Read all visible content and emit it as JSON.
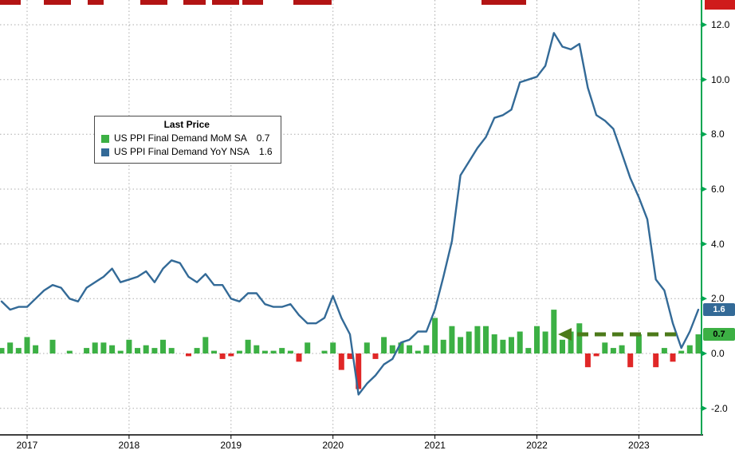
{
  "window": {
    "background": "#ffffff"
  },
  "colors": {
    "bar_positive": "#3cb044",
    "bar_negative": "#e02727",
    "line": "#336a97",
    "axis_green": "#00a651",
    "grid": "#ababab",
    "axis_text": "#000000",
    "annotation": "#4c7a1a"
  },
  "legend": {
    "title": "Last Price",
    "items": [
      {
        "label": "US PPI Final Demand MoM SA",
        "value": "0.7",
        "swatch": "#3cb044"
      },
      {
        "label": "US PPI Final Demand YoY NSA",
        "value": "1.6",
        "swatch": "#336a97"
      }
    ]
  },
  "badges": [
    {
      "text": "1.6",
      "value": 1.6,
      "bg": "#336a97",
      "fg": "#ffffff"
    },
    {
      "text": "0.7",
      "value": 0.7,
      "bg": "#3cb044",
      "fg": "#000000"
    }
  ],
  "chart_data": {
    "type": "bar+line",
    "title": "",
    "grid": "dotted",
    "legend_position": "upper-left-inset",
    "ylim": [
      -3.0,
      12.9
    ],
    "y_ticks": [
      {
        "label": "12.0",
        "value": 12
      },
      {
        "label": "10.0",
        "value": 10
      },
      {
        "label": "8.0",
        "value": 8
      },
      {
        "label": "6.0",
        "value": 6
      },
      {
        "label": "4.0",
        "value": 4
      },
      {
        "label": "2.0",
        "value": 2
      },
      {
        "label": "0.0",
        "value": 0
      },
      {
        "label": "-2.0",
        "value": -2
      }
    ],
    "x_tick_labels": [
      "2017",
      "2018",
      "2019",
      "2020",
      "2021",
      "2022",
      "2023"
    ],
    "x_months": [
      "2016-10",
      "2016-11",
      "2016-12",
      "2017-01",
      "2017-02",
      "2017-03",
      "2017-04",
      "2017-05",
      "2017-06",
      "2017-07",
      "2017-08",
      "2017-09",
      "2017-10",
      "2017-11",
      "2017-12",
      "2018-01",
      "2018-02",
      "2018-03",
      "2018-04",
      "2018-05",
      "2018-06",
      "2018-07",
      "2018-08",
      "2018-09",
      "2018-10",
      "2018-11",
      "2018-12",
      "2019-01",
      "2019-02",
      "2019-03",
      "2019-04",
      "2019-05",
      "2019-06",
      "2019-07",
      "2019-08",
      "2019-09",
      "2019-10",
      "2019-11",
      "2019-12",
      "2020-01",
      "2020-02",
      "2020-03",
      "2020-04",
      "2020-05",
      "2020-06",
      "2020-07",
      "2020-08",
      "2020-09",
      "2020-10",
      "2020-11",
      "2020-12",
      "2021-01",
      "2021-02",
      "2021-03",
      "2021-04",
      "2021-05",
      "2021-06",
      "2021-07",
      "2021-08",
      "2021-09",
      "2021-10",
      "2021-11",
      "2021-12",
      "2022-01",
      "2022-02",
      "2022-03",
      "2022-04",
      "2022-05",
      "2022-06",
      "2022-07",
      "2022-08",
      "2022-09",
      "2022-10",
      "2022-11",
      "2022-12",
      "2023-01",
      "2023-02",
      "2023-03",
      "2023-04",
      "2023-05",
      "2023-06",
      "2023-07",
      "2023-08"
    ],
    "series": [
      {
        "name": "US PPI Final Demand MoM SA",
        "type": "bar",
        "last": 0.7,
        "values": [
          0.2,
          0.4,
          0.2,
          0.6,
          0.3,
          0.0,
          0.5,
          0.0,
          0.1,
          0.0,
          0.2,
          0.4,
          0.4,
          0.3,
          0.1,
          0.5,
          0.2,
          0.3,
          0.2,
          0.5,
          0.2,
          0.0,
          -0.1,
          0.2,
          0.6,
          0.1,
          -0.2,
          -0.1,
          0.1,
          0.5,
          0.3,
          0.1,
          0.1,
          0.2,
          0.1,
          -0.3,
          0.4,
          0.0,
          0.1,
          0.4,
          -0.6,
          -0.2,
          -1.3,
          0.4,
          -0.2,
          0.6,
          0.3,
          0.4,
          0.3,
          0.1,
          0.3,
          1.3,
          0.5,
          1.0,
          0.6,
          0.8,
          1.0,
          1.0,
          0.7,
          0.5,
          0.6,
          0.8,
          0.2,
          1.0,
          0.8,
          1.6,
          0.5,
          0.8,
          1.1,
          -0.5,
          -0.1,
          0.4,
          0.2,
          0.3,
          -0.5,
          0.7,
          0.0,
          -0.5,
          0.2,
          -0.3,
          0.1,
          0.3,
          0.7
        ]
      },
      {
        "name": "US PPI Final Demand YoY NSA",
        "type": "line",
        "last": 1.6,
        "values": [
          1.9,
          1.6,
          1.7,
          1.7,
          2.0,
          2.3,
          2.5,
          2.4,
          2.0,
          1.9,
          2.4,
          2.6,
          2.8,
          3.1,
          2.6,
          2.7,
          2.8,
          3.0,
          2.6,
          3.1,
          3.4,
          3.3,
          2.8,
          2.6,
          2.9,
          2.5,
          2.5,
          2.0,
          1.9,
          2.2,
          2.2,
          1.8,
          1.7,
          1.7,
          1.8,
          1.4,
          1.1,
          1.1,
          1.3,
          2.1,
          1.3,
          0.7,
          -1.5,
          -1.1,
          -0.8,
          -0.4,
          -0.2,
          0.4,
          0.5,
          0.8,
          0.8,
          1.6,
          2.8,
          4.1,
          6.5,
          7.0,
          7.5,
          7.9,
          8.6,
          8.7,
          8.9,
          9.9,
          10.0,
          10.1,
          10.5,
          11.7,
          11.2,
          11.1,
          11.3,
          9.7,
          8.7,
          8.5,
          8.2,
          7.3,
          6.4,
          5.7,
          4.9,
          2.7,
          2.3,
          1.1,
          0.2,
          0.8,
          1.6
        ]
      }
    ],
    "annotation": {
      "type": "dashed-arrow",
      "direction": "left",
      "y_value": 0.7,
      "color": "#4c7a1a",
      "meaning": "points at current MoM bar level"
    }
  }
}
